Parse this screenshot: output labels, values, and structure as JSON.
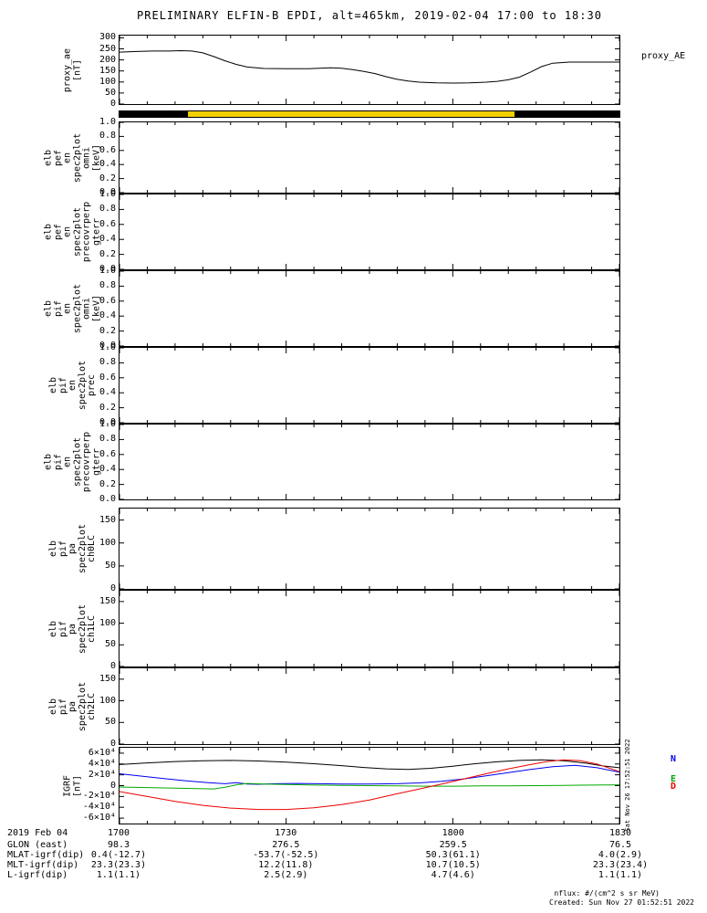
{
  "title": "PRELIMINARY ELFIN-B EPDI, alt=465km, 2019-02-04 17:00 to 18:30",
  "right_labels": {
    "proxy_ae": "proxy_AE",
    "side_timestamp": "Sat Nov 26 17:52:51 2022"
  },
  "footer": {
    "nflux": "nflux: #/(cm^2 s sr MeV)",
    "created": "Created: Sun Nov 27 01:52:51 2022"
  },
  "x_axis": {
    "range_minutes": [
      0,
      90
    ],
    "major_ticks": [
      0,
      30,
      60,
      90
    ],
    "labels": [
      "1700",
      "1730",
      "1800",
      "1830"
    ],
    "minor_step": 5
  },
  "orbit_bar": {
    "segments": [
      {
        "color": "#000000",
        "from": 0.0,
        "to": 0.137
      },
      {
        "color": "#f0d000",
        "from": 0.137,
        "to": 0.791
      },
      {
        "color": "#000000",
        "from": 0.791,
        "to": 1.0
      }
    ]
  },
  "bottom_table": {
    "rows": [
      {
        "label": "2019 Feb 04",
        "values": [
          "1700",
          "1730",
          "1800",
          "1830"
        ]
      },
      {
        "label": "GLON (east)",
        "values": [
          "98.3",
          "276.5",
          "259.5",
          "76.5"
        ]
      },
      {
        "label": "MLAT-igrf(dip)",
        "values": [
          "0.4(-12.7)",
          "-53.7(-52.5)",
          "50.3(61.1)",
          "4.0(2.9)"
        ]
      },
      {
        "label": "MLT-igrf(dip)",
        "values": [
          "23.3(23.3)",
          "12.2(11.8)",
          "10.7(10.5)",
          "23.3(23.4)"
        ]
      },
      {
        "label": "L-igrf(dip)",
        "values": [
          "1.1(1.1)",
          "2.5(2.9)",
          "4.7(4.6)",
          "1.1(1.1)"
        ]
      }
    ]
  },
  "chart_data": [
    {
      "id": "proxy-ae",
      "type": "line",
      "ylabel_lines": [
        "proxy_ae",
        "[nT]"
      ],
      "yrange": [
        0,
        310
      ],
      "yticks": [
        {
          "v": 300,
          "t": "300"
        },
        {
          "v": 250,
          "t": "250"
        },
        {
          "v": 200,
          "t": "200"
        },
        {
          "v": 150,
          "t": "150"
        },
        {
          "v": 100,
          "t": "100"
        },
        {
          "v": 50,
          "t": "50"
        },
        {
          "v": 0,
          "t": "0"
        }
      ],
      "series": [
        {
          "name": "proxy_AE",
          "color": "#000000",
          "x": [
            0,
            3,
            6,
            9,
            11,
            13,
            15,
            17,
            19,
            21,
            23,
            26,
            30,
            34,
            36,
            38,
            40,
            42,
            44,
            46,
            48,
            50,
            52,
            54,
            57,
            60,
            63,
            66,
            68,
            70,
            72,
            74,
            76,
            78,
            81,
            85,
            90
          ],
          "y": [
            235,
            238,
            240,
            240,
            242,
            240,
            232,
            215,
            196,
            180,
            168,
            161,
            160,
            160,
            162,
            164,
            162,
            156,
            148,
            138,
            124,
            112,
            104,
            99,
            96,
            95,
            96,
            99,
            103,
            110,
            122,
            145,
            170,
            185,
            190,
            190,
            190
          ]
        }
      ]
    },
    {
      "id": "pef-en-omni",
      "type": "line",
      "ylabel_lines": [
        "elb",
        "pef",
        "en",
        "spec2plot",
        "omni",
        "[keV]"
      ],
      "yrange": [
        0,
        1
      ],
      "yticks": [
        {
          "v": 1.0,
          "t": "1.0"
        },
        {
          "v": 0.8,
          "t": "0.8"
        },
        {
          "v": 0.6,
          "t": "0.6"
        },
        {
          "v": 0.4,
          "t": "0.4"
        },
        {
          "v": 0.2,
          "t": "0.2"
        },
        {
          "v": 0.0,
          "t": "0.0"
        }
      ],
      "series": []
    },
    {
      "id": "pef-en-precovrperp-gterr",
      "type": "line",
      "ylabel_lines": [
        "elb",
        "pef",
        "en",
        "spec2plot",
        "precovrperp",
        "gterr"
      ],
      "yrange": [
        0,
        1
      ],
      "yticks": [
        {
          "v": 1.0,
          "t": "1.0"
        },
        {
          "v": 0.8,
          "t": "0.8"
        },
        {
          "v": 0.6,
          "t": "0.6"
        },
        {
          "v": 0.4,
          "t": "0.4"
        },
        {
          "v": 0.2,
          "t": "0.2"
        },
        {
          "v": 0.0,
          "t": "0.0"
        }
      ],
      "series": []
    },
    {
      "id": "pif-en-omni",
      "type": "line",
      "ylabel_lines": [
        "elb",
        "pif",
        "en",
        "spec2plot",
        "omni",
        "[keV]"
      ],
      "yrange": [
        0,
        1
      ],
      "yticks": [
        {
          "v": 1.0,
          "t": "1.0"
        },
        {
          "v": 0.8,
          "t": "0.8"
        },
        {
          "v": 0.6,
          "t": "0.6"
        },
        {
          "v": 0.4,
          "t": "0.4"
        },
        {
          "v": 0.2,
          "t": "0.2"
        },
        {
          "v": 0.0,
          "t": "0.0"
        }
      ],
      "series": []
    },
    {
      "id": "pif-en-prec",
      "type": "line",
      "ylabel_lines": [
        "elb",
        "pif",
        "en",
        "spec2plot",
        "prec"
      ],
      "yrange": [
        0,
        1
      ],
      "yticks": [
        {
          "v": 1.0,
          "t": "1.0"
        },
        {
          "v": 0.8,
          "t": "0.8"
        },
        {
          "v": 0.6,
          "t": "0.6"
        },
        {
          "v": 0.4,
          "t": "0.4"
        },
        {
          "v": 0.2,
          "t": "0.2"
        },
        {
          "v": 0.0,
          "t": "0.0"
        }
      ],
      "series": []
    },
    {
      "id": "pif-en-precovrperp-gterr",
      "type": "line",
      "ylabel_lines": [
        "elb",
        "pif",
        "en",
        "spec2plot",
        "precovrperp",
        "gterr"
      ],
      "yrange": [
        0,
        1
      ],
      "yticks": [
        {
          "v": 1.0,
          "t": "1.0"
        },
        {
          "v": 0.8,
          "t": "0.8"
        },
        {
          "v": 0.6,
          "t": "0.6"
        },
        {
          "v": 0.4,
          "t": "0.4"
        },
        {
          "v": 0.2,
          "t": "0.2"
        },
        {
          "v": 0.0,
          "t": "0.0"
        }
      ],
      "series": []
    },
    {
      "id": "pif-pa-ch0lc",
      "type": "line",
      "ylabel_lines": [
        "elb",
        "pif",
        "pa",
        "spec2plot",
        "ch0LC"
      ],
      "yrange": [
        0,
        175
      ],
      "yticks": [
        {
          "v": 150,
          "t": "150"
        },
        {
          "v": 100,
          "t": "100"
        },
        {
          "v": 50,
          "t": "50"
        },
        {
          "v": 0,
          "t": "0"
        }
      ],
      "series": []
    },
    {
      "id": "pif-pa-ch1lc",
      "type": "line",
      "ylabel_lines": [
        "elb",
        "pif",
        "pa",
        "spec2plot",
        "ch1LC"
      ],
      "yrange": [
        0,
        175
      ],
      "yticks": [
        {
          "v": 150,
          "t": "150"
        },
        {
          "v": 100,
          "t": "100"
        },
        {
          "v": 50,
          "t": "50"
        },
        {
          "v": 0,
          "t": "0"
        }
      ],
      "series": []
    },
    {
      "id": "pif-pa-ch2lc",
      "type": "line",
      "ylabel_lines": [
        "elb",
        "pif",
        "pa",
        "spec2plot",
        "ch2LC"
      ],
      "yrange": [
        0,
        175
      ],
      "yticks": [
        {
          "v": 150,
          "t": "150"
        },
        {
          "v": 100,
          "t": "100"
        },
        {
          "v": 50,
          "t": "50"
        },
        {
          "v": 0,
          "t": "0"
        }
      ],
      "series": []
    },
    {
      "id": "igrf",
      "type": "line",
      "ylabel_lines": [
        "IGRF",
        "[nT]"
      ],
      "yrange": [
        -70000,
        70000
      ],
      "yticks": [
        {
          "v": 60000,
          "t": "6×10⁴"
        },
        {
          "v": 40000,
          "t": "4×10⁴"
        },
        {
          "v": 20000,
          "t": "2×10⁴"
        },
        {
          "v": 0,
          "t": "0"
        },
        {
          "v": -20000,
          "t": "-2×10⁴"
        },
        {
          "v": -40000,
          "t": "-4×10⁴"
        },
        {
          "v": -60000,
          "t": "-6×10⁴"
        }
      ],
      "legend": [
        {
          "label": "N",
          "color": "#0000ee"
        },
        {
          "label": "E",
          "color": "#00aa00"
        },
        {
          "label": "D",
          "color": "#ee0000"
        }
      ],
      "series": [
        {
          "name": "Btotal",
          "color": "#000000",
          "x": [
            0,
            5,
            10,
            15,
            20,
            25,
            30,
            35,
            40,
            44,
            48,
            52,
            56,
            60,
            64,
            68,
            72,
            76,
            80,
            84,
            87,
            90
          ],
          "y": [
            39000,
            42000,
            44500,
            46000,
            46500,
            45500,
            43500,
            40500,
            37000,
            33500,
            31000,
            30000,
            32000,
            36000,
            40500,
            44000,
            46500,
            47500,
            46000,
            41500,
            36500,
            33000
          ]
        },
        {
          "name": "Bn",
          "color": "#0000ee",
          "x": [
            0,
            4,
            8,
            12,
            16,
            19,
            21,
            23,
            25,
            28,
            32,
            36,
            40,
            45,
            50,
            54,
            58,
            62,
            66,
            70,
            74,
            78,
            82,
            86,
            90
          ],
          "y": [
            22000,
            17500,
            13000,
            9000,
            5500,
            3500,
            5500,
            3000,
            2500,
            3500,
            4000,
            3500,
            3000,
            3000,
            3500,
            5000,
            8000,
            12500,
            18000,
            24000,
            30000,
            35000,
            37500,
            33000,
            25000
          ]
        },
        {
          "name": "Be",
          "color": "#00aa00",
          "x": [
            0,
            5,
            10,
            14,
            17,
            19,
            21,
            23,
            26,
            30,
            35,
            40,
            45,
            50,
            55,
            60,
            65,
            70,
            75,
            80,
            85,
            90
          ],
          "y": [
            -2500,
            -3500,
            -4500,
            -5500,
            -6000,
            -3000,
            1500,
            4000,
            3000,
            2000,
            1000,
            500,
            0,
            -500,
            -1000,
            -1000,
            -500,
            -500,
            0,
            500,
            1000,
            1500
          ]
        },
        {
          "name": "Bd",
          "color": "#ee0000",
          "x": [
            0,
            5,
            10,
            15,
            20,
            25,
            30,
            35,
            40,
            45,
            50,
            54,
            58,
            62,
            66,
            70,
            74,
            77,
            80,
            83,
            86,
            90
          ],
          "y": [
            -11000,
            -20000,
            -29000,
            -36500,
            -41500,
            -44000,
            -44000,
            -41000,
            -35000,
            -26500,
            -15000,
            -6000,
            3000,
            12500,
            22000,
            31000,
            39000,
            44500,
            47500,
            46000,
            40000,
            26000
          ]
        }
      ]
    }
  ]
}
